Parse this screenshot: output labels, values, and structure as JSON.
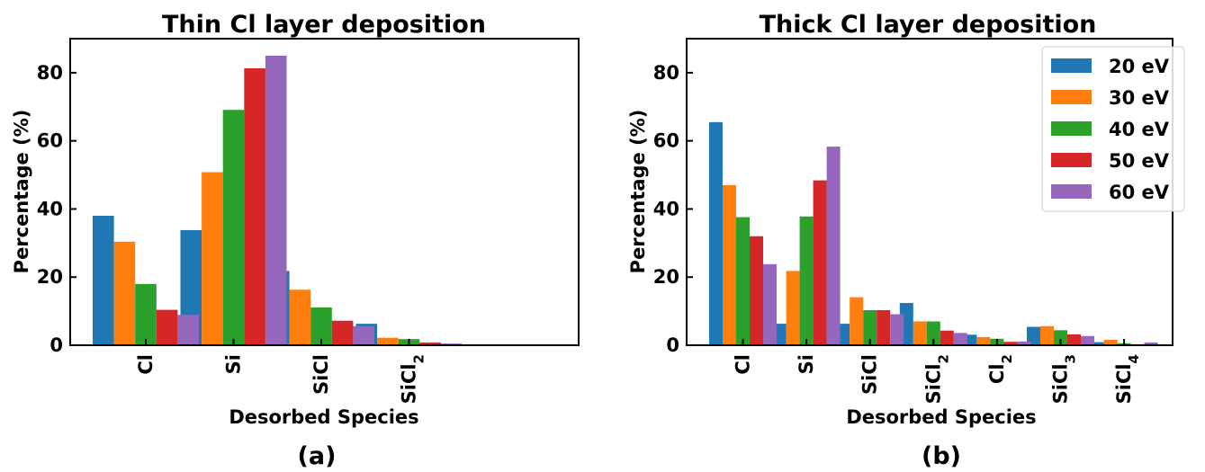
{
  "chart_data": [
    {
      "type": "bar",
      "title": "Thin Cl layer deposition",
      "xlabel": "Desorbed Species",
      "ylabel": "Percentage (%)",
      "panel_label": "(a)",
      "ylim": [
        0,
        90
      ],
      "yticks": [
        0,
        20,
        40,
        60,
        80
      ],
      "categories": [
        "Cl",
        "Si",
        "SiCl",
        "SiCl2"
      ],
      "category_labels": [
        {
          "base": "Cl",
          "sub": ""
        },
        {
          "base": "Si",
          "sub": ""
        },
        {
          "base": "SiCl",
          "sub": ""
        },
        {
          "base": "SiCl",
          "sub": "2"
        }
      ],
      "series": [
        {
          "name": "20 eV",
          "values": [
            38.0,
            33.8,
            21.8,
            6.3
          ]
        },
        {
          "name": "30 eV",
          "values": [
            30.4,
            50.8,
            16.3,
            2.2
          ]
        },
        {
          "name": "40 eV",
          "values": [
            18.0,
            69.1,
            11.1,
            1.8
          ]
        },
        {
          "name": "50 eV",
          "values": [
            10.4,
            81.3,
            7.2,
            0.8
          ]
        },
        {
          "name": "60 eV",
          "values": [
            8.9,
            85.0,
            5.6,
            0.5
          ]
        }
      ],
      "grid": false,
      "legend": "none"
    },
    {
      "type": "bar",
      "title": "Thick Cl layer deposition",
      "xlabel": "Desorbed Species",
      "ylabel": "Percentage (%)",
      "panel_label": "(b)",
      "ylim": [
        0,
        90
      ],
      "yticks": [
        0,
        20,
        40,
        60,
        80
      ],
      "categories": [
        "Cl",
        "Si",
        "SiCl",
        "SiCl2",
        "Cl2",
        "SiCl3",
        "SiCl4"
      ],
      "category_labels": [
        {
          "base": "Cl",
          "sub": ""
        },
        {
          "base": "Si",
          "sub": ""
        },
        {
          "base": "SiCl",
          "sub": ""
        },
        {
          "base": "SiCl",
          "sub": "2"
        },
        {
          "base": "Cl",
          "sub": "2"
        },
        {
          "base": "SiCl",
          "sub": "3"
        },
        {
          "base": "SiCl",
          "sub": "4"
        }
      ],
      "series": [
        {
          "name": "20 eV",
          "values": [
            65.5,
            6.3,
            6.3,
            12.4,
            3.1,
            5.4,
            0.9
          ]
        },
        {
          "name": "30 eV",
          "values": [
            47.0,
            21.8,
            14.1,
            7.0,
            2.4,
            5.6,
            1.6
          ]
        },
        {
          "name": "40 eV",
          "values": [
            37.6,
            37.8,
            10.3,
            7.0,
            1.9,
            4.4,
            0.6
          ]
        },
        {
          "name": "50 eV",
          "values": [
            32.0,
            48.4,
            10.3,
            4.3,
            1.0,
            3.2,
            0.3
          ]
        },
        {
          "name": "60 eV",
          "values": [
            23.8,
            58.3,
            9.1,
            3.6,
            1.1,
            2.7,
            0.8
          ]
        }
      ],
      "grid": false,
      "legend": "top-right"
    }
  ],
  "colors": {
    "20 eV": "#1f77b4",
    "30 eV": "#ff7f0e",
    "40 eV": "#2ca02c",
    "50 eV": "#d62728",
    "60 eV": "#9467bd"
  },
  "legend_items": [
    "20 eV",
    "30 eV",
    "40 eV",
    "50 eV",
    "60 eV"
  ]
}
